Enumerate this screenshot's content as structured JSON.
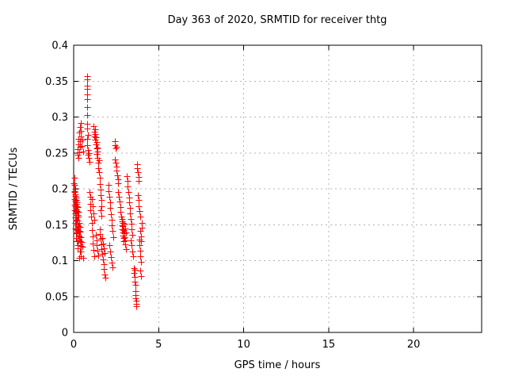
{
  "chart_data": {
    "type": "scatter",
    "title": "Day 363 of 2020, SRMTID for receiver thtg",
    "xlabel": "GPS time / hours",
    "ylabel": "SRMTID / TECUs",
    "xlim": [
      0,
      24
    ],
    "ylim": [
      0,
      0.4
    ],
    "xticks": [
      0,
      5,
      10,
      15,
      20
    ],
    "xtick_labels": [
      "0",
      "5",
      "10",
      "15",
      "20"
    ],
    "yticks": [
      0,
      0.05,
      0.1,
      0.15,
      0.2,
      0.25,
      0.3,
      0.35,
      0.4
    ],
    "ytick_labels": [
      "0",
      "0.05",
      "0.1",
      "0.15",
      "0.2",
      "0.25",
      "0.3",
      "0.35",
      "0.4"
    ],
    "grid": true,
    "legend_position": "none",
    "marker": "plus",
    "marker_color": "#ff0000",
    "axis_color": "#000000",
    "grid_color": "#b3b3b3",
    "background_color": "#ffffff",
    "series": [
      {
        "name": "SRMTID",
        "points": [
          [
            0.02,
            0.208
          ],
          [
            0.03,
            0.197
          ],
          [
            0.03,
            0.215
          ],
          [
            0.04,
            0.186
          ],
          [
            0.05,
            0.205
          ],
          [
            0.05,
            0.178
          ],
          [
            0.06,
            0.196
          ],
          [
            0.06,
            0.17
          ],
          [
            0.07,
            0.19
          ],
          [
            0.08,
            0.16
          ],
          [
            0.08,
            0.183
          ],
          [
            0.09,
            0.2
          ],
          [
            0.09,
            0.152
          ],
          [
            0.1,
            0.176
          ],
          [
            0.1,
            0.192
          ],
          [
            0.11,
            0.166
          ],
          [
            0.11,
            0.145
          ],
          [
            0.12,
            0.188
          ],
          [
            0.12,
            0.157
          ],
          [
            0.13,
            0.179
          ],
          [
            0.13,
            0.139
          ],
          [
            0.14,
            0.171
          ],
          [
            0.14,
            0.15
          ],
          [
            0.15,
            0.184
          ],
          [
            0.15,
            0.132
          ],
          [
            0.16,
            0.163
          ],
          [
            0.17,
            0.176
          ],
          [
            0.17,
            0.144
          ],
          [
            0.18,
            0.156
          ],
          [
            0.18,
            0.127
          ],
          [
            0.19,
            0.169
          ],
          [
            0.2,
            0.138
          ],
          [
            0.2,
            0.181
          ],
          [
            0.21,
            0.15
          ],
          [
            0.22,
            0.163
          ],
          [
            0.22,
            0.122
          ],
          [
            0.23,
            0.175
          ],
          [
            0.24,
            0.143
          ],
          [
            0.25,
            0.156
          ],
          [
            0.25,
            0.117
          ],
          [
            0.26,
            0.168
          ],
          [
            0.27,
            0.135
          ],
          [
            0.28,
            0.148
          ],
          [
            0.29,
            0.161
          ],
          [
            0.3,
            0.128
          ],
          [
            0.31,
            0.141
          ],
          [
            0.32,
            0.153
          ],
          [
            0.33,
            0.104
          ],
          [
            0.34,
            0.134
          ],
          [
            0.35,
            0.147
          ],
          [
            0.36,
            0.113
          ],
          [
            0.37,
            0.127
          ],
          [
            0.38,
            0.14
          ],
          [
            0.4,
            0.106
          ],
          [
            0.41,
            0.12
          ],
          [
            0.42,
            0.133
          ],
          [
            0.44,
            0.113
          ],
          [
            0.46,
            0.126
          ],
          [
            0.5,
            0.119
          ],
          [
            0.55,
            0.104
          ],
          [
            0.23,
            0.247
          ],
          [
            0.25,
            0.255
          ],
          [
            0.27,
            0.262
          ],
          [
            0.28,
            0.243
          ],
          [
            0.3,
            0.27
          ],
          [
            0.32,
            0.251
          ],
          [
            0.33,
            0.278
          ],
          [
            0.35,
            0.259
          ],
          [
            0.36,
            0.286
          ],
          [
            0.38,
            0.266
          ],
          [
            0.4,
            0.292
          ],
          [
            0.42,
            0.273
          ],
          [
            0.44,
            0.281
          ],
          [
            0.46,
            0.26
          ],
          [
            0.5,
            0.268
          ],
          [
            0.55,
            0.252
          ],
          [
            0.78,
            0.357
          ],
          [
            0.8,
            0.352
          ],
          [
            0.79,
            0.344
          ],
          [
            0.81,
            0.339
          ],
          [
            0.78,
            0.331
          ],
          [
            0.8,
            0.325
          ],
          [
            0.79,
            0.314
          ],
          [
            0.81,
            0.303
          ],
          [
            0.8,
            0.291
          ],
          [
            0.79,
            0.284
          ],
          [
            0.82,
            0.275
          ],
          [
            0.8,
            0.27
          ],
          [
            0.81,
            0.261
          ],
          [
            0.84,
            0.254
          ],
          [
            0.86,
            0.247
          ],
          [
            0.88,
            0.25
          ],
          [
            0.9,
            0.243
          ],
          [
            0.92,
            0.238
          ],
          [
            0.93,
            0.196
          ],
          [
            0.96,
            0.189
          ],
          [
            0.98,
            0.179
          ],
          [
            1.0,
            0.17
          ],
          [
            1.03,
            0.161
          ],
          [
            1.05,
            0.152
          ],
          [
            1.08,
            0.143
          ],
          [
            1.1,
            0.134
          ],
          [
            1.13,
            0.124
          ],
          [
            1.16,
            0.115
          ],
          [
            1.19,
            0.106
          ],
          [
            1.05,
            0.186
          ],
          [
            1.1,
            0.176
          ],
          [
            1.15,
            0.166
          ],
          [
            1.2,
            0.157
          ],
          [
            1.18,
            0.287
          ],
          [
            1.2,
            0.28
          ],
          [
            1.22,
            0.273
          ],
          [
            1.25,
            0.283
          ],
          [
            1.27,
            0.276
          ],
          [
            1.28,
            0.268
          ],
          [
            1.3,
            0.262
          ],
          [
            1.32,
            0.272
          ],
          [
            1.33,
            0.256
          ],
          [
            1.35,
            0.265
          ],
          [
            1.37,
            0.249
          ],
          [
            1.38,
            0.258
          ],
          [
            1.4,
            0.243
          ],
          [
            1.42,
            0.252
          ],
          [
            1.44,
            0.236
          ],
          [
            1.46,
            0.229
          ],
          [
            1.48,
            0.24
          ],
          [
            1.5,
            0.223
          ],
          [
            1.53,
            0.215
          ],
          [
            1.55,
            0.207
          ],
          [
            1.58,
            0.199
          ],
          [
            1.6,
            0.191
          ],
          [
            1.62,
            0.184
          ],
          [
            1.65,
            0.176
          ],
          [
            1.57,
            0.17
          ],
          [
            1.63,
            0.162
          ],
          [
            1.3,
            0.136
          ],
          [
            1.33,
            0.128
          ],
          [
            1.36,
            0.121
          ],
          [
            1.4,
            0.114
          ],
          [
            1.43,
            0.107
          ],
          [
            1.52,
            0.144
          ],
          [
            1.55,
            0.137
          ],
          [
            1.58,
            0.13
          ],
          [
            1.62,
            0.123
          ],
          [
            1.65,
            0.116
          ],
          [
            1.68,
            0.109
          ],
          [
            1.72,
            0.102
          ],
          [
            1.75,
            0.095
          ],
          [
            1.78,
            0.088
          ],
          [
            1.82,
            0.081
          ],
          [
            1.85,
            0.076
          ],
          [
            1.68,
            0.131
          ],
          [
            1.73,
            0.124
          ],
          [
            1.78,
            0.117
          ],
          [
            1.83,
            0.11
          ],
          [
            2.04,
            0.205
          ],
          [
            2.07,
            0.197
          ],
          [
            2.1,
            0.189
          ],
          [
            2.13,
            0.181
          ],
          [
            2.16,
            0.173
          ],
          [
            2.19,
            0.165
          ],
          [
            2.22,
            0.157
          ],
          [
            2.25,
            0.149
          ],
          [
            2.28,
            0.141
          ],
          [
            2.31,
            0.133
          ],
          [
            2.12,
            0.121
          ],
          [
            2.16,
            0.113
          ],
          [
            2.2,
            0.105
          ],
          [
            2.24,
            0.097
          ],
          [
            2.28,
            0.091
          ],
          [
            2.41,
            0.266
          ],
          [
            2.44,
            0.261
          ],
          [
            2.47,
            0.256
          ],
          [
            2.52,
            0.259
          ],
          [
            2.44,
            0.241
          ],
          [
            2.47,
            0.236
          ],
          [
            2.5,
            0.231
          ],
          [
            2.53,
            0.225
          ],
          [
            2.56,
            0.219
          ],
          [
            2.59,
            0.213
          ],
          [
            2.62,
            0.208
          ],
          [
            2.62,
            0.196
          ],
          [
            2.66,
            0.189
          ],
          [
            2.7,
            0.182
          ],
          [
            2.73,
            0.175
          ],
          [
            2.76,
            0.168
          ],
          [
            2.79,
            0.161
          ],
          [
            2.82,
            0.155
          ],
          [
            2.84,
            0.149
          ],
          [
            2.86,
            0.144
          ],
          [
            2.88,
            0.139
          ],
          [
            2.9,
            0.135
          ],
          [
            2.92,
            0.131
          ],
          [
            2.95,
            0.127
          ],
          [
            2.86,
            0.158
          ],
          [
            2.89,
            0.153
          ],
          [
            2.91,
            0.148
          ],
          [
            2.94,
            0.143
          ],
          [
            2.97,
            0.138
          ],
          [
            3.0,
            0.133
          ],
          [
            3.02,
            0.128
          ],
          [
            3.05,
            0.123
          ],
          [
            2.98,
            0.151
          ],
          [
            3.01,
            0.145
          ],
          [
            3.06,
            0.139
          ],
          [
            3.08,
            0.116
          ],
          [
            3.12,
            0.218
          ],
          [
            3.15,
            0.211
          ],
          [
            3.18,
            0.203
          ],
          [
            3.21,
            0.196
          ],
          [
            3.24,
            0.188
          ],
          [
            3.27,
            0.181
          ],
          [
            3.3,
            0.173
          ],
          [
            3.33,
            0.166
          ],
          [
            3.36,
            0.158
          ],
          [
            3.39,
            0.151
          ],
          [
            3.42,
            0.144
          ],
          [
            3.45,
            0.136
          ],
          [
            3.36,
            0.128
          ],
          [
            3.4,
            0.121
          ],
          [
            3.44,
            0.113
          ],
          [
            3.48,
            0.106
          ],
          [
            3.52,
            0.089
          ],
          [
            3.55,
            0.083
          ],
          [
            3.58,
            0.077
          ],
          [
            3.6,
            0.071
          ],
          [
            3.62,
            0.066
          ],
          [
            3.57,
            0.087
          ],
          [
            3.63,
            0.052
          ],
          [
            3.65,
            0.048
          ],
          [
            3.67,
            0.044
          ],
          [
            3.68,
            0.04
          ],
          [
            3.7,
            0.036
          ],
          [
            3.64,
            0.058
          ],
          [
            3.72,
            0.234
          ],
          [
            3.75,
            0.229
          ],
          [
            3.78,
            0.223
          ],
          [
            3.81,
            0.217
          ],
          [
            3.84,
            0.211
          ],
          [
            3.78,
            0.191
          ],
          [
            3.81,
            0.184
          ],
          [
            3.84,
            0.176
          ],
          [
            3.87,
            0.169
          ],
          [
            3.9,
            0.161
          ],
          [
            3.85,
            0.129
          ],
          [
            3.88,
            0.122
          ],
          [
            3.9,
            0.114
          ],
          [
            3.93,
            0.106
          ],
          [
            3.96,
            0.098
          ],
          [
            3.92,
            0.141
          ],
          [
            3.95,
            0.134
          ],
          [
            3.98,
            0.127
          ],
          [
            3.91,
            0.086
          ],
          [
            3.94,
            0.079
          ],
          [
            3.99,
            0.152
          ],
          [
            4.02,
            0.146
          ]
        ]
      }
    ]
  }
}
